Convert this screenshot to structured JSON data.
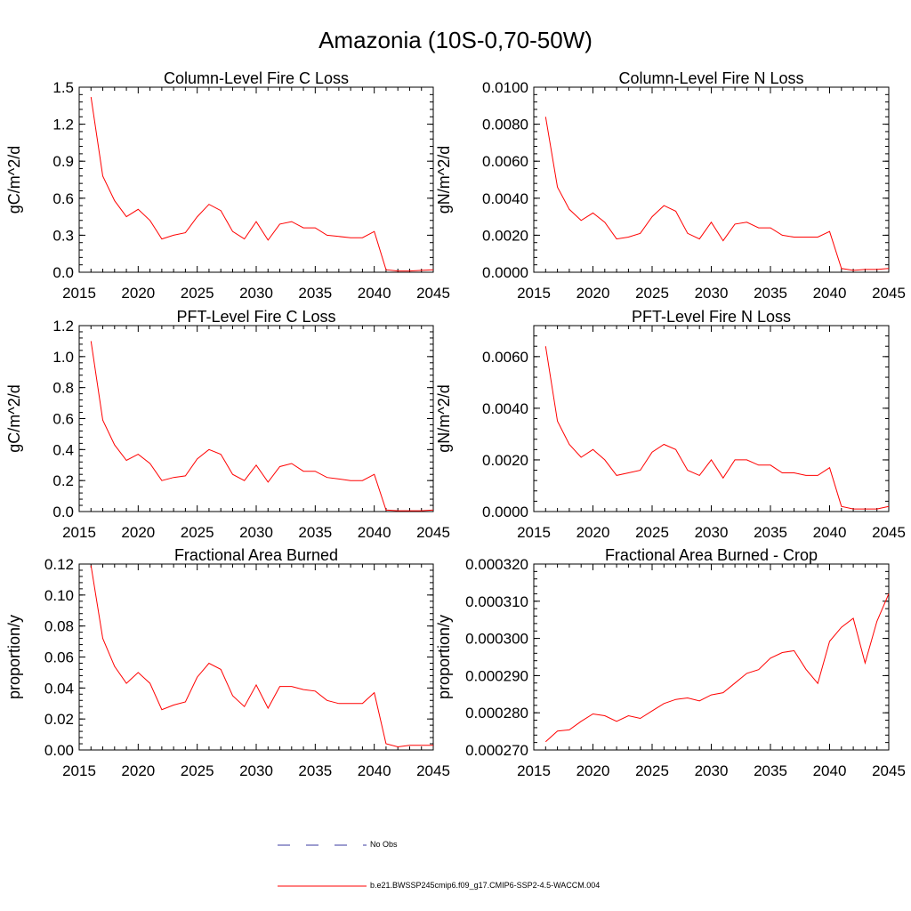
{
  "figure": {
    "title": "Amazonia (10S-0,70-50W)",
    "legend": [
      {
        "label": "No Obs",
        "color": "#3a3aa0",
        "dash": "dashed"
      },
      {
        "label": "b.e21.BWSSP245cmip6.f09_g17.CMIP6-SSP2-4.5-WACCM.004",
        "color": "#ff0000",
        "dash": "solid"
      }
    ]
  },
  "chart_data": [
    {
      "type": "line",
      "title": "Column-Level Fire C Loss",
      "xlabel": "",
      "ylabel": "gC/m^2/d",
      "xlim": [
        2015,
        2045
      ],
      "ylim": [
        0,
        1.5
      ],
      "xticks": [
        "2015",
        "2020",
        "2025",
        "2030",
        "2035",
        "2040",
        "2045"
      ],
      "yticks": [
        "0.0",
        "0.3",
        "0.6",
        "0.9",
        "1.2",
        "1.5"
      ],
      "x": [
        2016,
        2017,
        2018,
        2019,
        2020,
        2021,
        2022,
        2023,
        2024,
        2025,
        2026,
        2027,
        2028,
        2029,
        2030,
        2031,
        2032,
        2033,
        2034,
        2035,
        2036,
        2037,
        2038,
        2039,
        2040,
        2041,
        2042,
        2043,
        2044,
        2045
      ],
      "series": [
        {
          "color": "#ff0000",
          "values": [
            1.42,
            0.78,
            0.58,
            0.45,
            0.51,
            0.42,
            0.27,
            0.3,
            0.32,
            0.45,
            0.55,
            0.5,
            0.33,
            0.27,
            0.41,
            0.26,
            0.39,
            0.41,
            0.36,
            0.36,
            0.3,
            0.29,
            0.28,
            0.28,
            0.33,
            0.02,
            0.01,
            0.01,
            0.015,
            0.02
          ]
        }
      ]
    },
    {
      "type": "line",
      "title": "Column-Level Fire N Loss",
      "xlabel": "",
      "ylabel": "gN/m^2/d",
      "xlim": [
        2015,
        2045
      ],
      "ylim": [
        0,
        0.01
      ],
      "xticks": [
        "2015",
        "2020",
        "2025",
        "2030",
        "2035",
        "2040",
        "2045"
      ],
      "yticks": [
        "0.0000",
        "0.0020",
        "0.0040",
        "0.0060",
        "0.0080",
        "0.0100"
      ],
      "x": [
        2016,
        2017,
        2018,
        2019,
        2020,
        2021,
        2022,
        2023,
        2024,
        2025,
        2026,
        2027,
        2028,
        2029,
        2030,
        2031,
        2032,
        2033,
        2034,
        2035,
        2036,
        2037,
        2038,
        2039,
        2040,
        2041,
        2042,
        2043,
        2044,
        2045
      ],
      "series": [
        {
          "color": "#ff0000",
          "values": [
            0.0084,
            0.0046,
            0.0034,
            0.0028,
            0.0032,
            0.0027,
            0.0018,
            0.0019,
            0.0021,
            0.003,
            0.0036,
            0.0033,
            0.0021,
            0.0018,
            0.0027,
            0.0017,
            0.0026,
            0.0027,
            0.0024,
            0.0024,
            0.002,
            0.0019,
            0.0019,
            0.0019,
            0.0022,
            0.0002,
            0.0001,
            0.00015,
            0.00015,
            0.0002
          ]
        }
      ]
    },
    {
      "type": "line",
      "title": "PFT-Level Fire C Loss",
      "xlabel": "",
      "ylabel": "gC/m^2/d",
      "xlim": [
        2015,
        2045
      ],
      "ylim": [
        0,
        1.2
      ],
      "xticks": [
        "2015",
        "2020",
        "2025",
        "2030",
        "2035",
        "2040",
        "2045"
      ],
      "yticks": [
        "0.0",
        "0.2",
        "0.4",
        "0.6",
        "0.8",
        "1.0",
        "1.2"
      ],
      "x": [
        2016,
        2017,
        2018,
        2019,
        2020,
        2021,
        2022,
        2023,
        2024,
        2025,
        2026,
        2027,
        2028,
        2029,
        2030,
        2031,
        2032,
        2033,
        2034,
        2035,
        2036,
        2037,
        2038,
        2039,
        2040,
        2041,
        2042,
        2043,
        2044,
        2045
      ],
      "series": [
        {
          "color": "#ff0000",
          "values": [
            1.1,
            0.59,
            0.43,
            0.33,
            0.37,
            0.31,
            0.2,
            0.22,
            0.23,
            0.34,
            0.4,
            0.37,
            0.24,
            0.2,
            0.3,
            0.19,
            0.29,
            0.31,
            0.26,
            0.26,
            0.22,
            0.21,
            0.2,
            0.2,
            0.24,
            0.01,
            0.005,
            0.005,
            0.005,
            0.01
          ]
        }
      ]
    },
    {
      "type": "line",
      "title": "PFT-Level Fire N Loss",
      "xlabel": "",
      "ylabel": "gN/m^2/d",
      "xlim": [
        2015,
        2045
      ],
      "ylim": [
        0,
        0.0072
      ],
      "xticks": [
        "2015",
        "2020",
        "2025",
        "2030",
        "2035",
        "2040",
        "2045"
      ],
      "yticks": [
        "0.0000",
        "0.0020",
        "0.0040",
        "0.0060"
      ],
      "ytick_values": [
        0,
        0.002,
        0.004,
        0.006
      ],
      "x": [
        2016,
        2017,
        2018,
        2019,
        2020,
        2021,
        2022,
        2023,
        2024,
        2025,
        2026,
        2027,
        2028,
        2029,
        2030,
        2031,
        2032,
        2033,
        2034,
        2035,
        2036,
        2037,
        2038,
        2039,
        2040,
        2041,
        2042,
        2043,
        2044,
        2045
      ],
      "series": [
        {
          "color": "#ff0000",
          "values": [
            0.0064,
            0.0035,
            0.0026,
            0.0021,
            0.0024,
            0.002,
            0.0014,
            0.0015,
            0.0016,
            0.0023,
            0.0026,
            0.0024,
            0.0016,
            0.0014,
            0.002,
            0.0013,
            0.002,
            0.002,
            0.0018,
            0.0018,
            0.0015,
            0.0015,
            0.0014,
            0.0014,
            0.0017,
            0.0002,
            0.0001,
            0.0001,
            0.0001,
            0.0002
          ]
        }
      ]
    },
    {
      "type": "line",
      "title": "Fractional Area Burned",
      "xlabel": "",
      "ylabel": "proportion/y",
      "xlim": [
        2015,
        2045
      ],
      "ylim": [
        0,
        0.12
      ],
      "xticks": [
        "2015",
        "2020",
        "2025",
        "2030",
        "2035",
        "2040",
        "2045"
      ],
      "yticks": [
        "0.00",
        "0.02",
        "0.04",
        "0.06",
        "0.08",
        "0.10",
        "0.12"
      ],
      "x": [
        2016,
        2017,
        2018,
        2019,
        2020,
        2021,
        2022,
        2023,
        2024,
        2025,
        2026,
        2027,
        2028,
        2029,
        2030,
        2031,
        2032,
        2033,
        2034,
        2035,
        2036,
        2037,
        2038,
        2039,
        2040,
        2041,
        2042,
        2043,
        2044,
        2045
      ],
      "series": [
        {
          "color": "#ff0000",
          "values": [
            0.119,
            0.072,
            0.054,
            0.043,
            0.05,
            0.043,
            0.026,
            0.029,
            0.031,
            0.047,
            0.056,
            0.052,
            0.035,
            0.028,
            0.042,
            0.027,
            0.041,
            0.041,
            0.039,
            0.038,
            0.032,
            0.03,
            0.03,
            0.03,
            0.037,
            0.004,
            0.002,
            0.003,
            0.003,
            0.003
          ]
        }
      ]
    },
    {
      "type": "line",
      "title": "Fractional Area Burned - Crop",
      "xlabel": "",
      "ylabel": "proportion/y",
      "xlim": [
        2015,
        2045
      ],
      "ylim": [
        0.00027,
        0.00032
      ],
      "xticks": [
        "2015",
        "2020",
        "2025",
        "2030",
        "2035",
        "2040",
        "2045"
      ],
      "yticks": [
        "0.000270",
        "0.000280",
        "0.000290",
        "0.000300",
        "0.000310",
        "0.000320"
      ],
      "x": [
        2016,
        2017,
        2018,
        2019,
        2020,
        2021,
        2022,
        2023,
        2024,
        2025,
        2026,
        2027,
        2028,
        2029,
        2030,
        2031,
        2032,
        2033,
        2034,
        2035,
        2036,
        2037,
        2038,
        2039,
        2040,
        2041,
        2042,
        2043,
        2044,
        2045
      ],
      "series": [
        {
          "color": "#ff0000",
          "values": [
            0.0002722,
            0.0002751,
            0.0002754,
            0.0002777,
            0.0002797,
            0.0002792,
            0.0002777,
            0.0002792,
            0.0002785,
            0.0002805,
            0.0002825,
            0.0002836,
            0.000284,
            0.0002832,
            0.0002848,
            0.0002854,
            0.000288,
            0.0002906,
            0.0002916,
            0.0002947,
            0.0002962,
            0.0002967,
            0.0002917,
            0.0002879,
            0.0002992,
            0.000303,
            0.0003054,
            0.0002934,
            0.0003046,
            0.000312
          ]
        }
      ]
    }
  ]
}
